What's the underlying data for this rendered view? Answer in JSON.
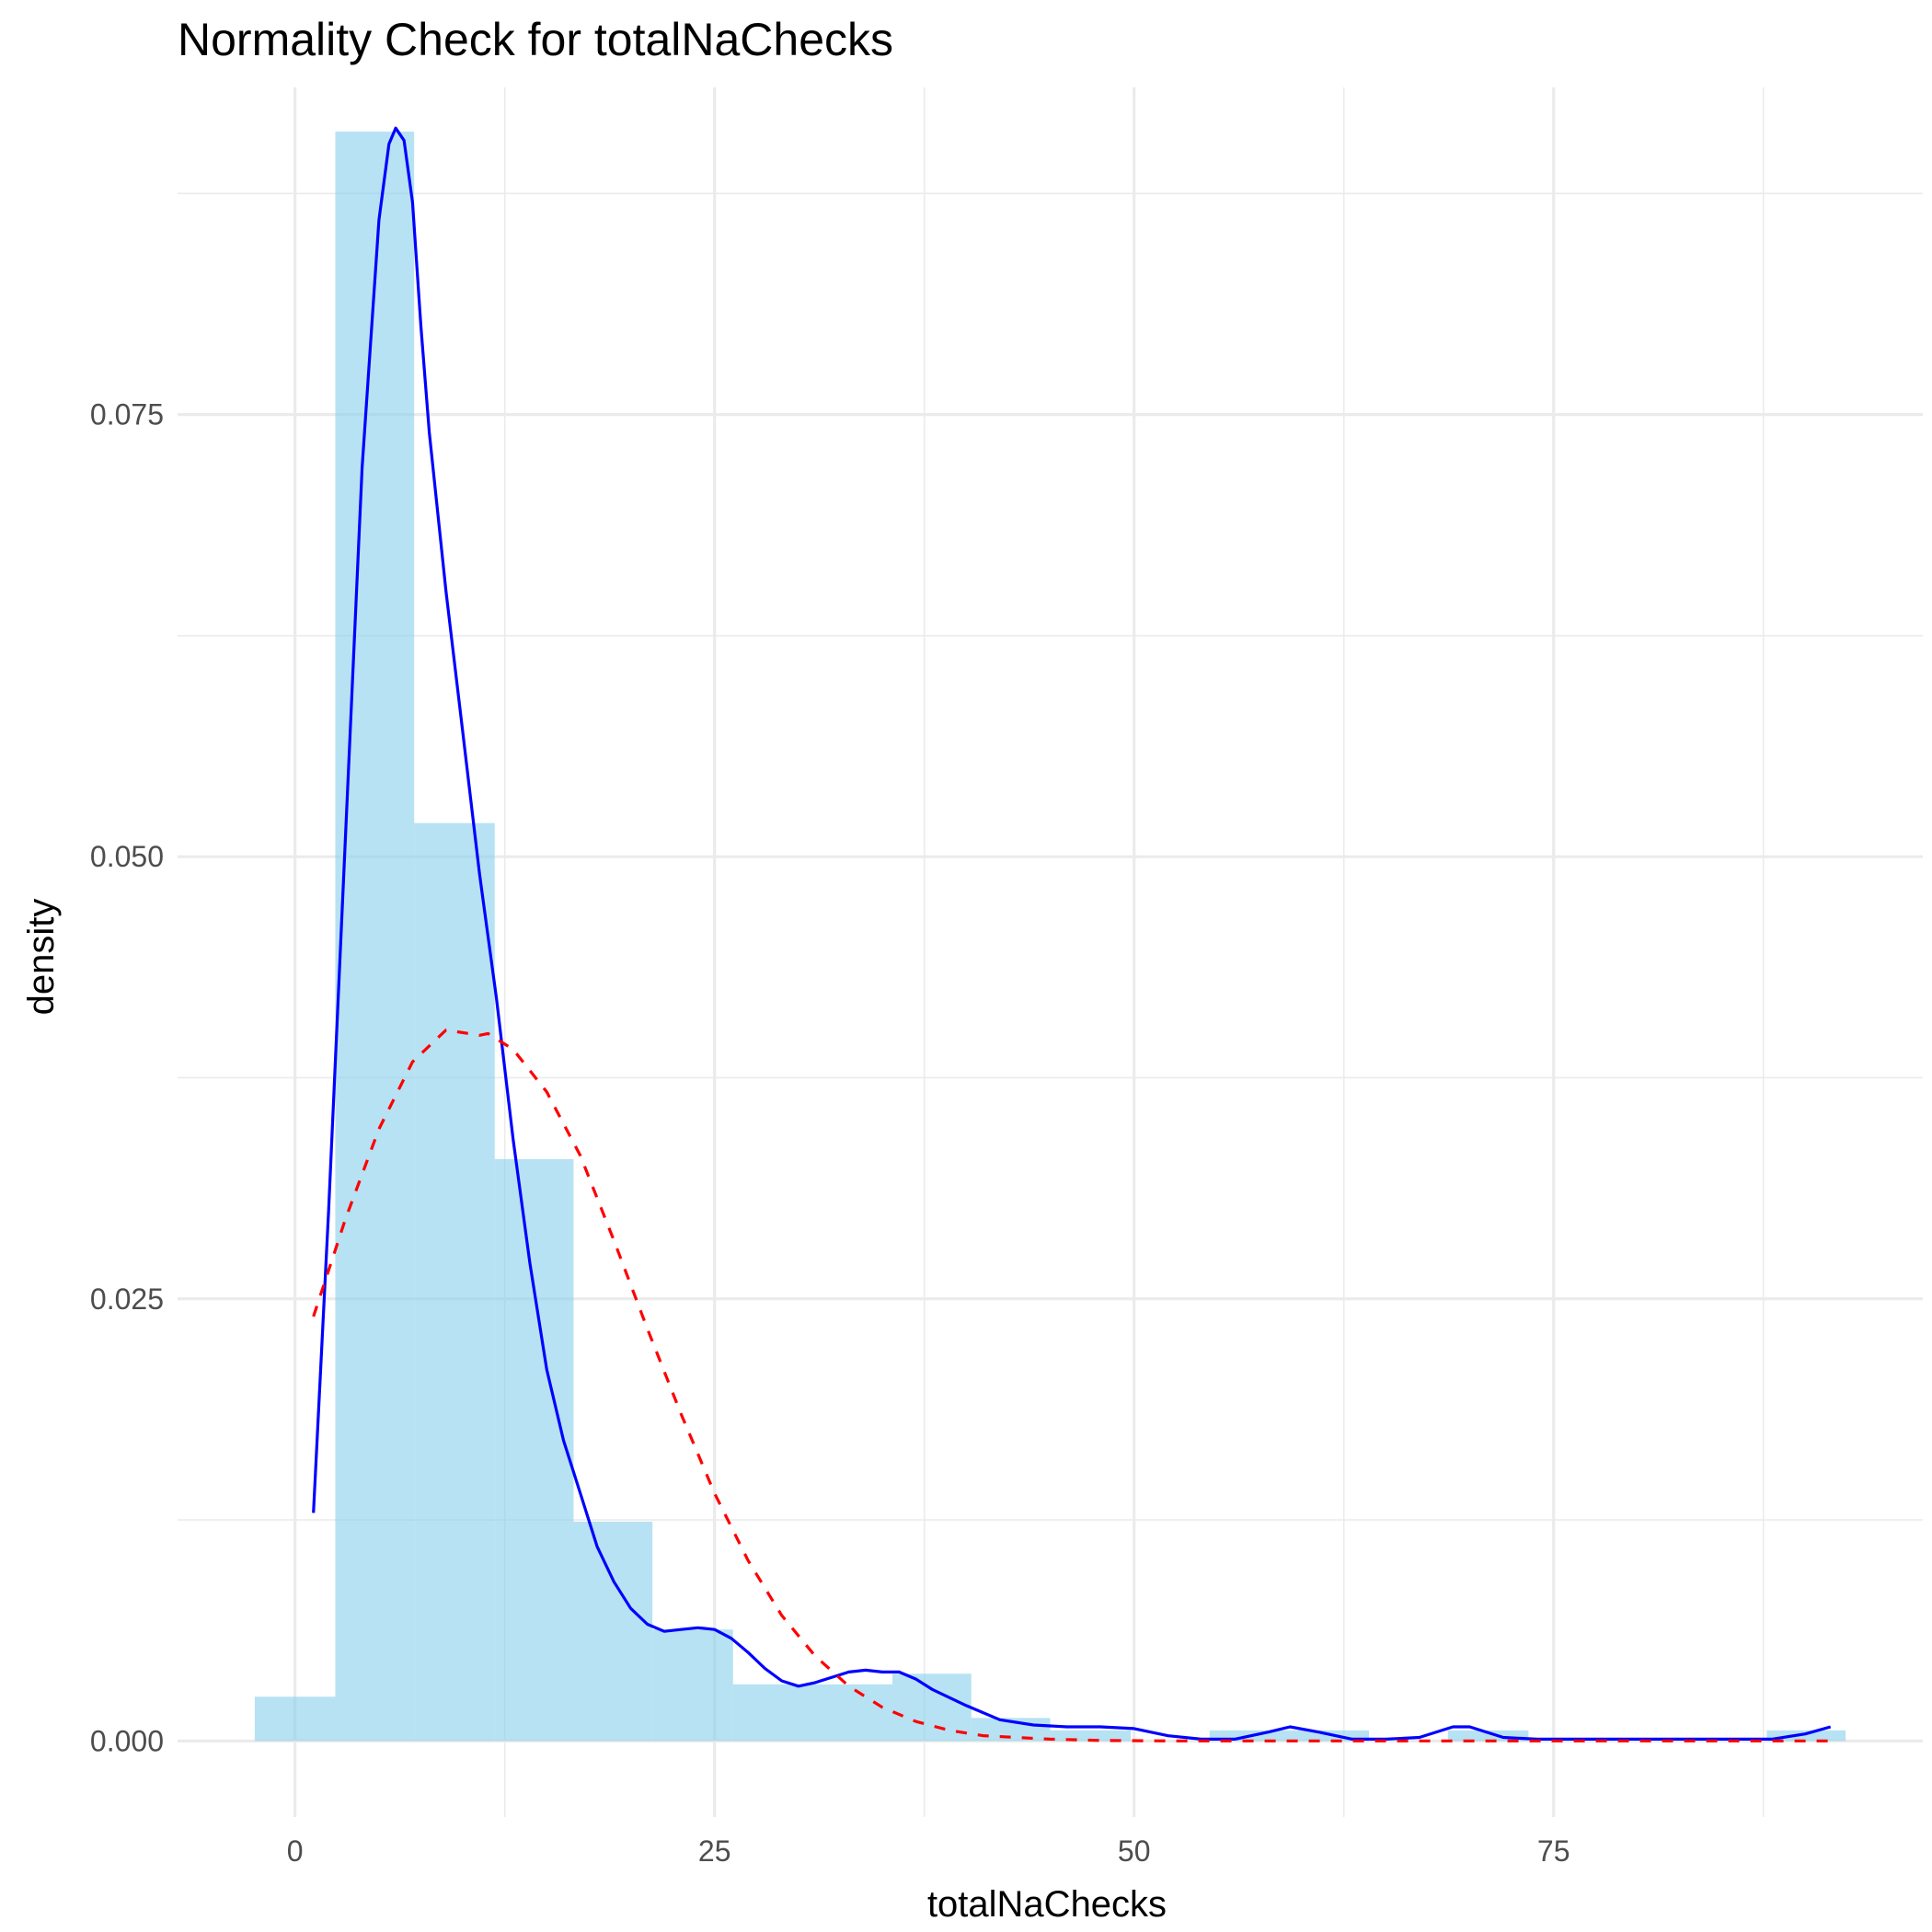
{
  "chart_data": {
    "type": "histogram",
    "title": "Normality Check for totalNaChecks",
    "xlabel": "totalNaChecks",
    "ylabel": "density",
    "xlim": [
      -7,
      97
    ],
    "ylim": [
      -0.0043,
      0.0935
    ],
    "x_ticks": [
      0,
      25,
      50,
      75
    ],
    "x_tick_labels": [
      "0",
      "25",
      "50",
      "75"
    ],
    "y_ticks": [
      0,
      0.025,
      0.05,
      0.075
    ],
    "y_tick_labels": [
      "0.000",
      "0.025",
      "0.050",
      "0.075"
    ],
    "grid": true,
    "histogram": {
      "fill": "#87ceeb",
      "opacity": 0.6,
      "bins": [
        {
          "x0": -2.4,
          "x1": 2.4,
          "density": 0.0025
        },
        {
          "x0": 2.4,
          "x1": 7.1,
          "density": 0.091
        },
        {
          "x0": 7.1,
          "x1": 11.9,
          "density": 0.0519
        },
        {
          "x0": 11.9,
          "x1": 16.6,
          "density": 0.0329
        },
        {
          "x0": 16.6,
          "x1": 21.3,
          "density": 0.0124
        },
        {
          "x0": 21.3,
          "x1": 26.1,
          "density": 0.0063
        },
        {
          "x0": 26.1,
          "x1": 30.8,
          "density": 0.0032
        },
        {
          "x0": 30.8,
          "x1": 35.6,
          "density": 0.0032
        },
        {
          "x0": 35.6,
          "x1": 40.3,
          "density": 0.0038
        },
        {
          "x0": 40.3,
          "x1": 45.0,
          "density": 0.0013
        },
        {
          "x0": 45.0,
          "x1": 49.8,
          "density": 0.0006
        },
        {
          "x0": 49.8,
          "x1": 54.5,
          "density": 0.0
        },
        {
          "x0": 54.5,
          "x1": 59.3,
          "density": 0.0006
        },
        {
          "x0": 59.3,
          "x1": 64.0,
          "density": 0.0006
        },
        {
          "x0": 64.0,
          "x1": 68.7,
          "density": 0.0
        },
        {
          "x0": 68.7,
          "x1": 73.5,
          "density": 0.0006
        },
        {
          "x0": 73.5,
          "x1": 78.2,
          "density": 0.0
        },
        {
          "x0": 78.2,
          "x1": 83.0,
          "density": 0.0
        },
        {
          "x0": 83.0,
          "x1": 87.7,
          "density": 0.0
        },
        {
          "x0": 87.7,
          "x1": 92.4,
          "density": 0.0006
        }
      ]
    },
    "series": [
      {
        "kind": "kernel-density",
        "color": "#0000ff",
        "dash": "solid",
        "x": [
          1.1,
          2.0,
          3.0,
          4.0,
          5.0,
          5.6,
          6.0,
          6.5,
          7.0,
          7.5,
          8.0,
          9.0,
          10.0,
          11.0,
          12.0,
          13.0,
          14.0,
          15.0,
          16.0,
          17.0,
          18.0,
          19.0,
          20.0,
          21.0,
          22.0,
          23.0,
          24.0,
          25.0,
          26.0,
          27.0,
          28.0,
          29.0,
          30.0,
          31.0,
          32.0,
          33.0,
          34.0,
          35.0,
          36.0,
          37.0,
          38.0,
          40.0,
          42.0,
          44.0,
          46.0,
          48.0,
          50.0,
          52.0,
          54.0,
          56.0,
          58.0,
          59.3,
          61.0,
          63.0,
          65.0,
          67.0,
          69.0,
          70.0,
          72.0,
          74.0,
          76.0,
          80.0,
          84.0,
          88.0,
          90.0,
          91.5
        ],
        "y": [
          0.0129,
          0.03,
          0.051,
          0.072,
          0.086,
          0.0903,
          0.0912,
          0.0905,
          0.087,
          0.08,
          0.074,
          0.065,
          0.057,
          0.049,
          0.042,
          0.034,
          0.027,
          0.021,
          0.017,
          0.014,
          0.011,
          0.009,
          0.0075,
          0.0066,
          0.0062,
          0.0063,
          0.0064,
          0.0063,
          0.0058,
          0.005,
          0.0041,
          0.0034,
          0.0031,
          0.0033,
          0.0036,
          0.0039,
          0.004,
          0.0039,
          0.0039,
          0.0035,
          0.0029,
          0.002,
          0.0012,
          0.0009,
          0.0008,
          0.0008,
          0.0007,
          0.0003,
          0.0001,
          0.0001,
          0.0005,
          0.0008,
          0.0005,
          0.0001,
          0.0001,
          0.0002,
          0.0008,
          0.0008,
          0.0002,
          0.0001,
          0.0001,
          0.0001,
          0.0001,
          0.0001,
          0.0004,
          0.0008
        ]
      },
      {
        "kind": "normal-fit",
        "color": "#ff0000",
        "dash": "dashed",
        "x": [
          1.1,
          3,
          5,
          7,
          9,
          11,
          11.5,
          13,
          15,
          17,
          19,
          21,
          23,
          25,
          27,
          29,
          31,
          33,
          35,
          37,
          39,
          41,
          43,
          45,
          48,
          52,
          56,
          60,
          65,
          70,
          75,
          80,
          85,
          91.5
        ],
        "y": [
          0.024,
          0.0295,
          0.0346,
          0.0384,
          0.0402,
          0.0399,
          0.04,
          0.0391,
          0.0367,
          0.0331,
          0.0283,
          0.0233,
          0.0185,
          0.014,
          0.0102,
          0.0071,
          0.0048,
          0.0031,
          0.0019,
          0.0011,
          0.0006,
          0.0003,
          0.0002,
          0.0001,
          3e-05,
          0.0,
          0.0,
          0.0,
          0.0,
          0.0,
          0.0,
          0.0,
          0.0,
          0.0
        ]
      }
    ]
  }
}
